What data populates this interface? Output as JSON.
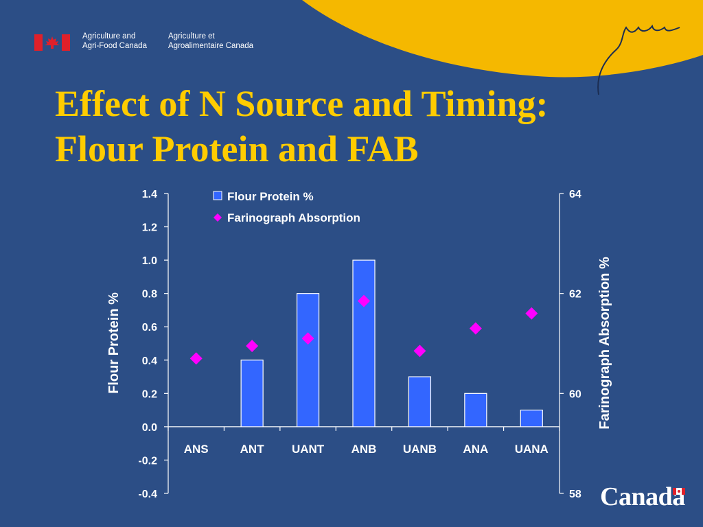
{
  "header": {
    "dept_en_line1": "Agriculture and",
    "dept_en_line2": "Agri-Food Canada",
    "dept_fr_line1": "Agriculture et",
    "dept_fr_line2": "Agroalimentaire Canada"
  },
  "title": {
    "line1": "Effect of N Source and Timing:",
    "line2": "Flour Protein and FAB"
  },
  "footer": {
    "wordmark": "Canada"
  },
  "colors": {
    "background": "#2c4e86",
    "title": "#ffcc00",
    "bar_fill": "#3366ff",
    "marker": "#ff00ff",
    "accent_red": "#e0202a"
  },
  "chart_data": {
    "type": "bar",
    "categories": [
      "ANS",
      "ANT",
      "UANT",
      "ANB",
      "UANB",
      "ANA",
      "UANA"
    ],
    "series": [
      {
        "name": "Flour Protein %",
        "type": "bar",
        "axis": "left",
        "values": [
          0.0,
          0.4,
          0.8,
          1.0,
          0.3,
          0.2,
          0.1
        ]
      },
      {
        "name": "Farinograph Absorption",
        "type": "scatter",
        "axis": "right",
        "values": [
          60.7,
          60.95,
          61.1,
          61.85,
          60.85,
          61.3,
          61.6
        ]
      }
    ],
    "ylabel": "Flour Protein %",
    "ylabel_right": "Farinograph Absorption %",
    "ylim": [
      -0.4,
      1.4
    ],
    "yticks": [
      "1.4",
      "1.2",
      "1.0",
      "0.8",
      "0.6",
      "0.4",
      "0.2",
      "0.0",
      "-0.2",
      "-0.4"
    ],
    "ylim_right": [
      58,
      64
    ],
    "yticks_right": [
      "64",
      "62",
      "60",
      "58"
    ],
    "legend_position": "top-center",
    "grid": false
  }
}
